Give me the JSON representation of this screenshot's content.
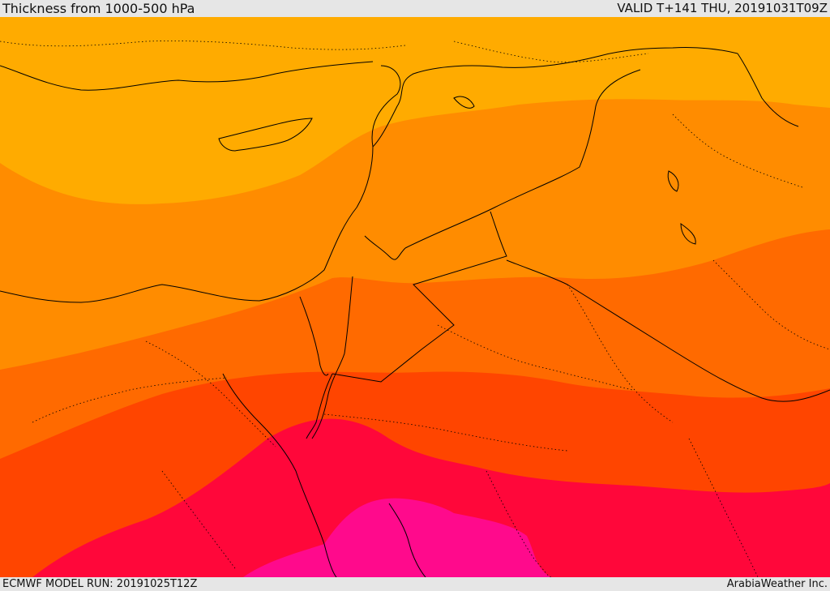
{
  "header": {
    "title": "Thickness from 1000-500 hPa",
    "valid_time": "VALID T+141 THU, 20191031T09Z"
  },
  "footer": {
    "model_run": "ECMWF MODEL RUN: 20191025T12Z",
    "credit": "ArabiaWeather Inc."
  },
  "map": {
    "bands": [
      {
        "name": "band-1",
        "color": "#ffab00"
      },
      {
        "name": "band-2",
        "color": "#ff8c00"
      },
      {
        "name": "band-3",
        "color": "#ff6a00"
      },
      {
        "name": "band-4",
        "color": "#ff4500"
      },
      {
        "name": "band-5",
        "color": "#ff073a"
      },
      {
        "name": "band-6",
        "color": "#ff0a8c"
      }
    ],
    "border_color": "#000000"
  }
}
